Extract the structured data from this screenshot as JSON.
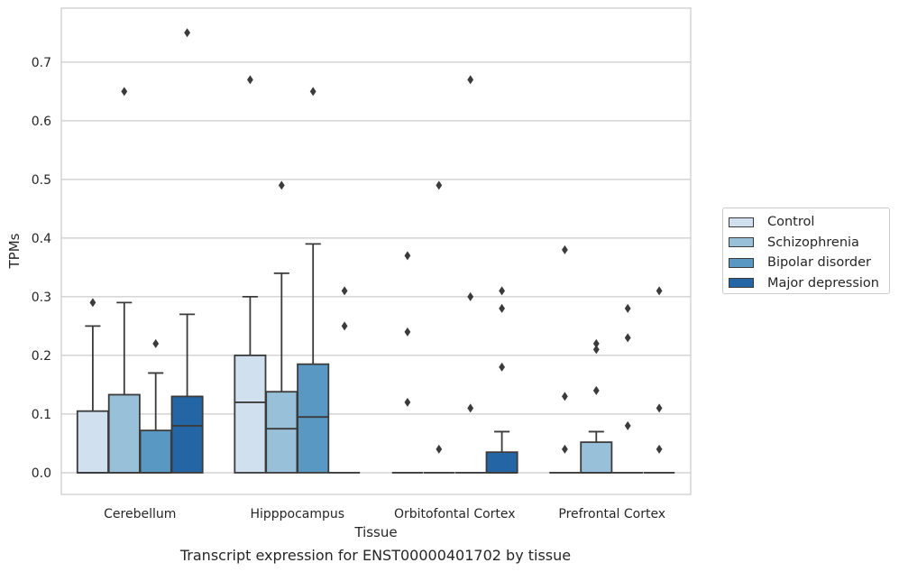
{
  "chart_data": {
    "type": "box",
    "xlabel": "Tissue",
    "ylabel": "TPMs",
    "caption": "Transcript expression for ENST00000401702 by tissue",
    "ylim": [
      -0.037,
      0.792
    ],
    "yticks": [
      "0.0",
      "0.1",
      "0.2",
      "0.3",
      "0.4",
      "0.5",
      "0.6",
      "0.7"
    ],
    "grid": "horizontal",
    "legend_position": "right",
    "categories": [
      "Cerebellum",
      "Hipppocampus",
      "Orbitofontal Cortex",
      "Prefrontal Cortex"
    ],
    "series": [
      {
        "name": "Control",
        "color": "#d0e0ef",
        "boxes": [
          {
            "whislo": 0.0,
            "q1": 0.0,
            "med": 0.0,
            "q3": 0.105,
            "whishi": 0.25,
            "fliers": [
              0.29
            ]
          },
          {
            "whislo": 0.0,
            "q1": 0.0,
            "med": 0.12,
            "q3": 0.2,
            "whishi": 0.3,
            "fliers": [
              0.67
            ]
          },
          {
            "whislo": 0.0,
            "q1": 0.0,
            "med": 0.0,
            "q3": 0.0,
            "whishi": 0.0,
            "fliers": [
              0.12,
              0.24,
              0.37
            ]
          },
          {
            "whislo": 0.0,
            "q1": 0.0,
            "med": 0.0,
            "q3": 0.0,
            "whishi": 0.0,
            "fliers": [
              0.04,
              0.13,
              0.38
            ]
          }
        ]
      },
      {
        "name": "Schizophrenia",
        "color": "#98c0d9",
        "boxes": [
          {
            "whislo": 0.0,
            "q1": 0.0,
            "med": 0.0,
            "q3": 0.133,
            "whishi": 0.29,
            "fliers": [
              0.65
            ]
          },
          {
            "whislo": 0.0,
            "q1": 0.0,
            "med": 0.075,
            "q3": 0.138,
            "whishi": 0.34,
            "fliers": [
              0.49
            ]
          },
          {
            "whislo": 0.0,
            "q1": 0.0,
            "med": 0.0,
            "q3": 0.0,
            "whishi": 0.0,
            "fliers": [
              0.04,
              0.49
            ]
          },
          {
            "whislo": 0.0,
            "q1": 0.0,
            "med": 0.0,
            "q3": 0.052,
            "whishi": 0.07,
            "fliers": [
              0.14,
              0.21,
              0.22
            ]
          }
        ]
      },
      {
        "name": "Bipolar disorder",
        "color": "#5898c2",
        "boxes": [
          {
            "whislo": 0.0,
            "q1": 0.0,
            "med": 0.0,
            "q3": 0.072,
            "whishi": 0.17,
            "fliers": [
              0.22
            ]
          },
          {
            "whislo": 0.0,
            "q1": 0.0,
            "med": 0.095,
            "q3": 0.185,
            "whishi": 0.39,
            "fliers": [
              0.65
            ]
          },
          {
            "whislo": 0.0,
            "q1": 0.0,
            "med": 0.0,
            "q3": 0.0,
            "whishi": 0.0,
            "fliers": [
              0.11,
              0.3,
              0.67
            ]
          },
          {
            "whislo": 0.0,
            "q1": 0.0,
            "med": 0.0,
            "q3": 0.0,
            "whishi": 0.0,
            "fliers": [
              0.08,
              0.23,
              0.28
            ]
          }
        ]
      },
      {
        "name": "Major depression",
        "color": "#2466a5",
        "boxes": [
          {
            "whislo": 0.0,
            "q1": 0.0,
            "med": 0.08,
            "q3": 0.13,
            "whishi": 0.27,
            "fliers": [
              0.75
            ]
          },
          {
            "whislo": 0.0,
            "q1": 0.0,
            "med": 0.0,
            "q3": 0.0,
            "whishi": 0.0,
            "fliers": [
              0.25,
              0.31
            ]
          },
          {
            "whislo": 0.0,
            "q1": 0.0,
            "med": 0.0,
            "q3": 0.035,
            "whishi": 0.07,
            "fliers": [
              0.18,
              0.28,
              0.31
            ]
          },
          {
            "whislo": 0.0,
            "q1": 0.0,
            "med": 0.0,
            "q3": 0.0,
            "whishi": 0.0,
            "fliers": [
              0.04,
              0.11,
              0.31
            ]
          }
        ]
      }
    ]
  }
}
